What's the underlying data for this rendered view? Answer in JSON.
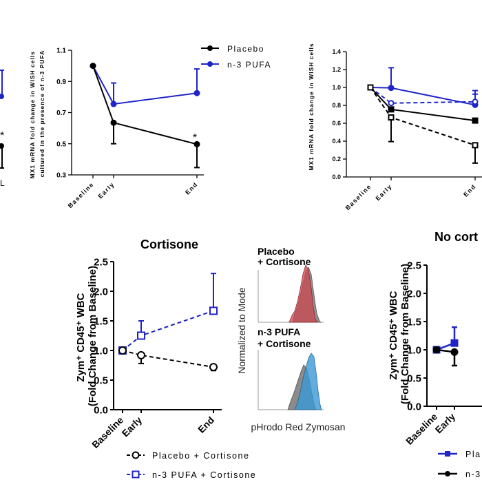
{
  "colors": {
    "placebo": "#000000",
    "pufa": "#1f24c8",
    "hist_red": "#c9474f",
    "hist_blue": "#3a98d6",
    "hist_gray": "#7e7e7e"
  },
  "panel_a": {
    "star": "*",
    "tick_label": "—",
    "bracket": "L",
    "ylabel_lines": [
      "MX1 mRNA fold change in WISH cells",
      "cultured in the presence of n-3 PUFA"
    ],
    "legend": {
      "placebo": "Placebo",
      "pufa": "n-3 PUFA"
    },
    "star_end": "*"
  },
  "panel_b": {
    "ylabel": "MX1 mRNA fold change in WISH cells"
  },
  "panel_c": {
    "title": "Cortisone",
    "ylabel_lines": [
      "Zym⁺ CD45⁺ WBC",
      "(Fold Change from  Baseline)"
    ],
    "legend": {
      "placebo": "Placebo + Cortisone",
      "pufa": "n-3 PUFA + Cortisone"
    }
  },
  "flow": {
    "top_label": [
      "Placebo",
      "+ Cortisone"
    ],
    "bottom_label": [
      "n-3 PUFA",
      "+ Cortisone"
    ],
    "ylabel": "Normalized to Mode",
    "xlabel": "pHrodo Red Zymosan"
  },
  "panel_d": {
    "title": "No cort",
    "ylabel_lines": [
      "Zym⁺ CD45⁺ WBC",
      "(Fold Change from  Baseline)"
    ],
    "legend": {
      "pufa": "Pla",
      "placebo": "n-3"
    }
  },
  "chart_data": [
    {
      "type": "line",
      "x": [
        "Baseline",
        "Early",
        "End"
      ],
      "ylim": [
        0.3,
        1.1
      ],
      "yticks": [
        "0.3",
        "0.5",
        "0.7",
        "0.9",
        "1.1"
      ],
      "series": [
        {
          "name": "Placebo",
          "values": [
            1.0,
            0.635,
            0.497
          ],
          "err_up": [
            0,
            0,
            0
          ],
          "err_down": [
            0,
            0.135,
            0.15
          ]
        },
        {
          "name": "n-3 PUFA",
          "values": [
            1.0,
            0.755,
            0.825
          ],
          "err_up": [
            0,
            0.135,
            0.155
          ],
          "err_down": [
            0,
            0,
            0
          ]
        }
      ]
    },
    {
      "type": "line",
      "x": [
        "Baseline",
        "Early",
        "End"
      ],
      "ylim": [
        0.0,
        1.4
      ],
      "yticks": [
        "0.0",
        "0.2",
        "0.4",
        "0.6",
        "0.8",
        "1.0",
        "1.2",
        "1.4"
      ],
      "series": [
        {
          "values": [
            1.0,
            0.995,
            0.805
          ],
          "err_up": [
            0,
            0.225,
            0.16
          ],
          "err_down": [
            0,
            0,
            0
          ],
          "color": "pufa",
          "marker": "filled-circle",
          "dash": false
        },
        {
          "values": [
            1.0,
            0.825,
            0.84
          ],
          "err_up": [
            0,
            0,
            0.085
          ],
          "err_down": [
            0,
            0,
            0
          ],
          "color": "pufa",
          "marker": "open-circle",
          "dash": true
        },
        {
          "values": [
            1.0,
            0.755,
            0.63
          ],
          "err_up": [
            0,
            0,
            0
          ],
          "err_down": [
            0,
            0,
            0
          ],
          "color": "placebo",
          "marker": "filled-square",
          "dash": false
        },
        {
          "values": [
            1.0,
            0.665,
            0.355
          ],
          "err_up": [
            0,
            0,
            0
          ],
          "err_down": [
            0,
            0.27,
            0.2
          ],
          "color": "placebo",
          "marker": "open-square",
          "dash": true
        }
      ]
    },
    {
      "type": "line",
      "title": "Cortisone",
      "x": [
        "Baseline",
        "Early",
        "End"
      ],
      "ylim": [
        0.0,
        2.5
      ],
      "yticks": [
        "0.0",
        "0.5",
        "1.0",
        "1.5",
        "2.0",
        "2.5"
      ],
      "series": [
        {
          "name": "Placebo + Cortisone",
          "values": [
            1.0,
            0.92,
            0.72
          ],
          "err_up": [
            0,
            0,
            0
          ],
          "err_down": [
            0,
            0.14,
            0.06
          ]
        },
        {
          "name": "n-3 PUFA + Cortisone",
          "values": [
            1.0,
            1.25,
            1.67
          ],
          "err_up": [
            0,
            0.25,
            0.63
          ],
          "err_down": [
            0,
            0,
            0
          ]
        }
      ]
    },
    {
      "type": "line",
      "title": "No cort",
      "x": [
        "Baseline",
        "Early"
      ],
      "ylim": [
        0.0,
        2.5
      ],
      "yticks": [
        "0.0",
        "0.5",
        "1.0",
        "1.5",
        "2.0",
        "2.5"
      ],
      "series": [
        {
          "values": [
            1.0,
            1.12
          ],
          "err_up": [
            0,
            0.28
          ],
          "err_down": [
            0,
            0
          ]
        },
        {
          "values": [
            1.0,
            0.96
          ],
          "err_up": [
            0,
            0
          ],
          "err_down": [
            0,
            0.24
          ]
        }
      ]
    }
  ]
}
